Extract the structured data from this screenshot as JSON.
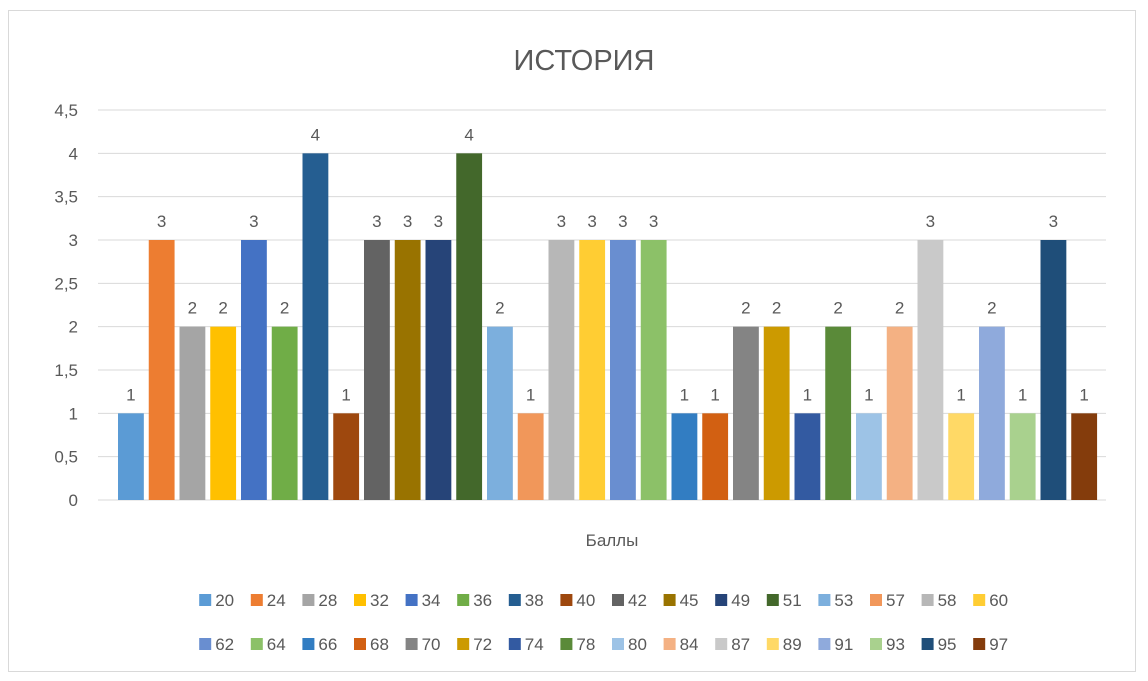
{
  "chart_data": {
    "type": "bar",
    "title": "ИСТОРИЯ",
    "xlabel": "Баллы",
    "ylabel": "",
    "ylim": [
      0,
      4.5
    ],
    "yticks": [
      "0",
      "0,5",
      "1",
      "1,5",
      "2",
      "2,5",
      "3",
      "3,5",
      "4",
      "4,5"
    ],
    "grid": true,
    "legend": "bottom",
    "series": [
      {
        "name": "20",
        "value": 1,
        "color": "#5b9bd5"
      },
      {
        "name": "24",
        "value": 3,
        "color": "#ed7d31"
      },
      {
        "name": "28",
        "value": 2,
        "color": "#a5a5a5"
      },
      {
        "name": "32",
        "value": 2,
        "color": "#ffc000"
      },
      {
        "name": "34",
        "value": 3,
        "color": "#4472c4"
      },
      {
        "name": "36",
        "value": 2,
        "color": "#70ad47"
      },
      {
        "name": "38",
        "value": 4,
        "color": "#255e91"
      },
      {
        "name": "40",
        "value": 1,
        "color": "#9e480e"
      },
      {
        "name": "42",
        "value": 3,
        "color": "#636363"
      },
      {
        "name": "45",
        "value": 3,
        "color": "#997300"
      },
      {
        "name": "49",
        "value": 3,
        "color": "#264478"
      },
      {
        "name": "51",
        "value": 4,
        "color": "#43682b"
      },
      {
        "name": "53",
        "value": 2,
        "color": "#7cafdd"
      },
      {
        "name": "57",
        "value": 1,
        "color": "#f1975a"
      },
      {
        "name": "58",
        "value": 3,
        "color": "#b7b7b7"
      },
      {
        "name": "60",
        "value": 3,
        "color": "#ffcd33"
      },
      {
        "name": "62",
        "value": 3,
        "color": "#698ed0"
      },
      {
        "name": "64",
        "value": 3,
        "color": "#8cc168"
      },
      {
        "name": "66",
        "value": 1,
        "color": "#327dc2"
      },
      {
        "name": "68",
        "value": 1,
        "color": "#d26012"
      },
      {
        "name": "70",
        "value": 2,
        "color": "#848484"
      },
      {
        "name": "72",
        "value": 2,
        "color": "#cc9a00"
      },
      {
        "name": "74",
        "value": 1,
        "color": "#335aa1"
      },
      {
        "name": "78",
        "value": 2,
        "color": "#5a8a39"
      },
      {
        "name": "80",
        "value": 1,
        "color": "#9dc3e6"
      },
      {
        "name": "84",
        "value": 2,
        "color": "#f4b183"
      },
      {
        "name": "87",
        "value": 3,
        "color": "#c9c9c9"
      },
      {
        "name": "89",
        "value": 1,
        "color": "#ffd966"
      },
      {
        "name": "91",
        "value": 2,
        "color": "#8faadc"
      },
      {
        "name": "93",
        "value": 1,
        "color": "#a9d18e"
      },
      {
        "name": "95",
        "value": 3,
        "color": "#1f4e79"
      },
      {
        "name": "97",
        "value": 1,
        "color": "#843c0c"
      }
    ]
  }
}
